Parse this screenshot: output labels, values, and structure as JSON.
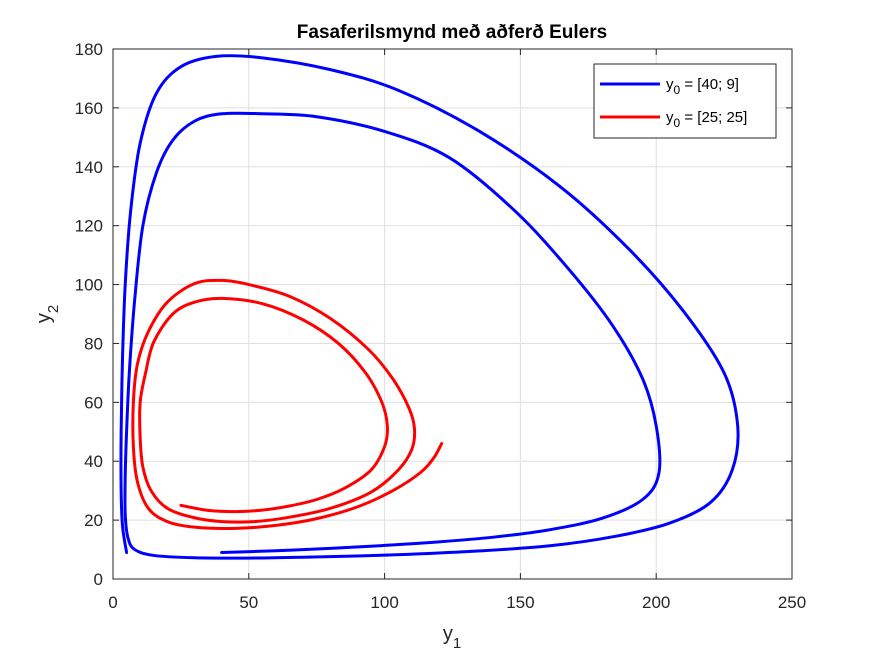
{
  "chart_data": {
    "type": "line",
    "title": "Fasaferilsmynd með aðferð Eulers",
    "xlabel": {
      "base": "y",
      "sub": "1"
    },
    "ylabel": {
      "base": "y",
      "sub": "2"
    },
    "xlim": [
      0,
      250
    ],
    "ylim": [
      0,
      180
    ],
    "xticks": [
      0,
      50,
      100,
      150,
      200,
      250
    ],
    "yticks": [
      0,
      20,
      40,
      60,
      80,
      100,
      120,
      140,
      160,
      180
    ],
    "xtick_labels": [
      "0",
      "50",
      "100",
      "150",
      "200",
      "250"
    ],
    "ytick_labels": [
      "0",
      "20",
      "40",
      "60",
      "80",
      "100",
      "120",
      "140",
      "160",
      "180"
    ],
    "grid": true,
    "legend_position": "top-right",
    "series": [
      {
        "name": "y0 = [40; 9]",
        "legend": {
          "base": "y",
          "sub": "0",
          "rest": " = [40; 9]"
        },
        "color": "#0000ff",
        "points": [
          [
            40,
            9
          ],
          [
            60,
            9.6
          ],
          [
            80,
            10.4
          ],
          [
            100,
            11.4
          ],
          [
            120,
            12.6
          ],
          [
            140,
            14.2
          ],
          [
            160,
            16.6
          ],
          [
            180,
            20.6
          ],
          [
            195,
            27
          ],
          [
            201,
            36
          ],
          [
            200,
            52
          ],
          [
            195,
            68
          ],
          [
            184,
            86
          ],
          [
            168,
            105
          ],
          [
            148,
            125
          ],
          [
            124,
            143
          ],
          [
            100,
            152
          ],
          [
            75,
            157
          ],
          [
            55,
            158
          ],
          [
            40,
            158
          ],
          [
            30,
            155.5
          ],
          [
            22,
            149
          ],
          [
            16,
            138
          ],
          [
            11,
            120
          ],
          [
            8,
            95
          ],
          [
            6,
            70
          ],
          [
            5,
            50
          ],
          [
            4.5,
            35
          ],
          [
            4.5,
            22
          ],
          [
            5.5,
            14
          ],
          [
            8,
            10
          ],
          [
            15,
            8
          ],
          [
            30,
            7.2
          ],
          [
            50,
            7.1
          ],
          [
            70,
            7.4
          ],
          [
            100,
            8.1
          ],
          [
            130,
            9.3
          ],
          [
            160,
            11.2
          ],
          [
            185,
            14.5
          ],
          [
            205,
            19
          ],
          [
            220,
            26
          ],
          [
            228,
            37
          ],
          [
            230,
            52
          ],
          [
            225,
            70
          ],
          [
            210,
            91
          ],
          [
            190,
            112
          ],
          [
            165,
            133
          ],
          [
            135,
            152
          ],
          [
            105,
            166
          ],
          [
            80,
            173
          ],
          [
            55,
            177
          ],
          [
            38,
            177.5
          ],
          [
            25,
            174
          ],
          [
            16,
            165
          ],
          [
            10,
            148
          ],
          [
            6.5,
            125
          ],
          [
            4.5,
            100
          ],
          [
            3.5,
            75
          ],
          [
            3,
            50
          ],
          [
            3,
            30
          ],
          [
            3.5,
            18
          ],
          [
            5,
            9
          ]
        ]
      },
      {
        "name": "y0 = [25; 25]",
        "legend": {
          "base": "y",
          "sub": "0",
          "rest": " = [25; 25]"
        },
        "color": "#ff0000",
        "points": [
          [
            25,
            25
          ],
          [
            35,
            23.3
          ],
          [
            45,
            22.9
          ],
          [
            55,
            23.4
          ],
          [
            65,
            24.8
          ],
          [
            75,
            27
          ],
          [
            85,
            30.7
          ],
          [
            95,
            37
          ],
          [
            100,
            45
          ],
          [
            101,
            52
          ],
          [
            99,
            60
          ],
          [
            93,
            70
          ],
          [
            83,
            80
          ],
          [
            70,
            88
          ],
          [
            55,
            93.5
          ],
          [
            40,
            95.3
          ],
          [
            30,
            94
          ],
          [
            22,
            90
          ],
          [
            15,
            80.5
          ],
          [
            12,
            70
          ],
          [
            10,
            60
          ],
          [
            10,
            48
          ],
          [
            11,
            38
          ],
          [
            14,
            30
          ],
          [
            20,
            24
          ],
          [
            30,
            20.8
          ],
          [
            40,
            19.5
          ],
          [
            52,
            19.5
          ],
          [
            65,
            21
          ],
          [
            80,
            24
          ],
          [
            95,
            29.5
          ],
          [
            105,
            37
          ],
          [
            110,
            44
          ],
          [
            111,
            51
          ],
          [
            109,
            58
          ],
          [
            103,
            68
          ],
          [
            94,
            78
          ],
          [
            80,
            88.5
          ],
          [
            65,
            96
          ],
          [
            50,
            100
          ],
          [
            40,
            101.4
          ],
          [
            30,
            100.3
          ],
          [
            20,
            94
          ],
          [
            13,
            84
          ],
          [
            9,
            73
          ],
          [
            7.5,
            60
          ],
          [
            7.5,
            45
          ],
          [
            9,
            33
          ],
          [
            13,
            24
          ],
          [
            20,
            19.5
          ],
          [
            30,
            17.6
          ],
          [
            45,
            17.2
          ],
          [
            60,
            18.2
          ],
          [
            75,
            20.5
          ],
          [
            90,
            24.5
          ],
          [
            103,
            30
          ],
          [
            113,
            36
          ],
          [
            118,
            41
          ],
          [
            121,
            46
          ]
        ]
      }
    ]
  }
}
